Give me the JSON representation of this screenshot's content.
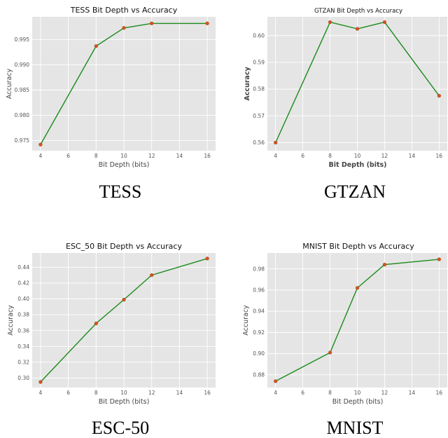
{
  "colors": {
    "line": "#1b8a1b",
    "marker": "#d9531e",
    "panel_bg": "#e5e5e5",
    "grid": "#ffffff"
  },
  "chart_data": [
    {
      "type": "line",
      "title": "TESS Bit Depth vs Accuracy",
      "caption": "TESS",
      "xlabel": "Bit Depth (bits)",
      "ylabel": "Accuracy",
      "x": [
        4,
        8,
        10,
        12,
        16
      ],
      "values": [
        0.9742,
        0.9937,
        0.9973,
        0.9982,
        0.9982
      ],
      "xlim": [
        3.4,
        16.6
      ],
      "ylim": [
        0.973,
        0.9995
      ],
      "xticks": [
        4,
        6,
        8,
        10,
        12,
        14,
        16
      ],
      "yticks": [
        0.975,
        0.98,
        0.985,
        0.99,
        0.995
      ],
      "ytick_labels": [
        "0.975",
        "0.980",
        "0.985",
        "0.990",
        "0.995"
      ],
      "grid": true
    },
    {
      "type": "line",
      "title": "GTZAN Bit Depth vs Accuracy",
      "caption": "GTZAN",
      "xlabel": "Bit Depth (bits)",
      "ylabel": "Accuracy",
      "x": [
        4,
        8,
        10,
        12,
        16
      ],
      "values": [
        0.56,
        0.605,
        0.6025,
        0.605,
        0.5775
      ],
      "xlim": [
        3.4,
        16.6
      ],
      "ylim": [
        0.557,
        0.607
      ],
      "xticks": [
        4,
        6,
        8,
        10,
        12,
        14,
        16
      ],
      "yticks": [
        0.56,
        0.57,
        0.58,
        0.59,
        0.6
      ],
      "ytick_labels": [
        "0.56",
        "0.57",
        "0.58",
        "0.59",
        "0.60"
      ],
      "grid": true
    },
    {
      "type": "line",
      "title": "ESC_50 Bit Depth vs Accuracy",
      "caption": "ESC-50",
      "xlabel": "Bit Depth (bits)",
      "ylabel": "Accuracy",
      "x": [
        4,
        8,
        10,
        12,
        16
      ],
      "values": [
        0.295,
        0.369,
        0.399,
        0.43,
        0.451
      ],
      "xlim": [
        3.4,
        16.6
      ],
      "ylim": [
        0.288,
        0.458
      ],
      "xticks": [
        4,
        6,
        8,
        10,
        12,
        14,
        16
      ],
      "yticks": [
        0.3,
        0.32,
        0.34,
        0.36,
        0.38,
        0.4,
        0.42,
        0.44
      ],
      "ytick_labels": [
        "0.30",
        "0.32",
        "0.34",
        "0.36",
        "0.38",
        "0.40",
        "0.42",
        "0.44"
      ],
      "grid": true
    },
    {
      "type": "line",
      "title": "MNIST Bit Depth vs Accuracy",
      "caption": "MNIST",
      "xlabel": "Bit Depth (bits)",
      "ylabel": "Accuracy",
      "x": [
        4,
        8,
        10,
        12,
        16
      ],
      "values": [
        0.874,
        0.901,
        0.962,
        0.984,
        0.989
      ],
      "xlim": [
        3.4,
        16.6
      ],
      "ylim": [
        0.868,
        0.995
      ],
      "xticks": [
        4,
        6,
        8,
        10,
        12,
        14,
        16
      ],
      "yticks": [
        0.88,
        0.9,
        0.92,
        0.94,
        0.96,
        0.98
      ],
      "ytick_labels": [
        "0.88",
        "0.90",
        "0.92",
        "0.94",
        "0.96",
        "0.98"
      ],
      "grid": true
    }
  ]
}
